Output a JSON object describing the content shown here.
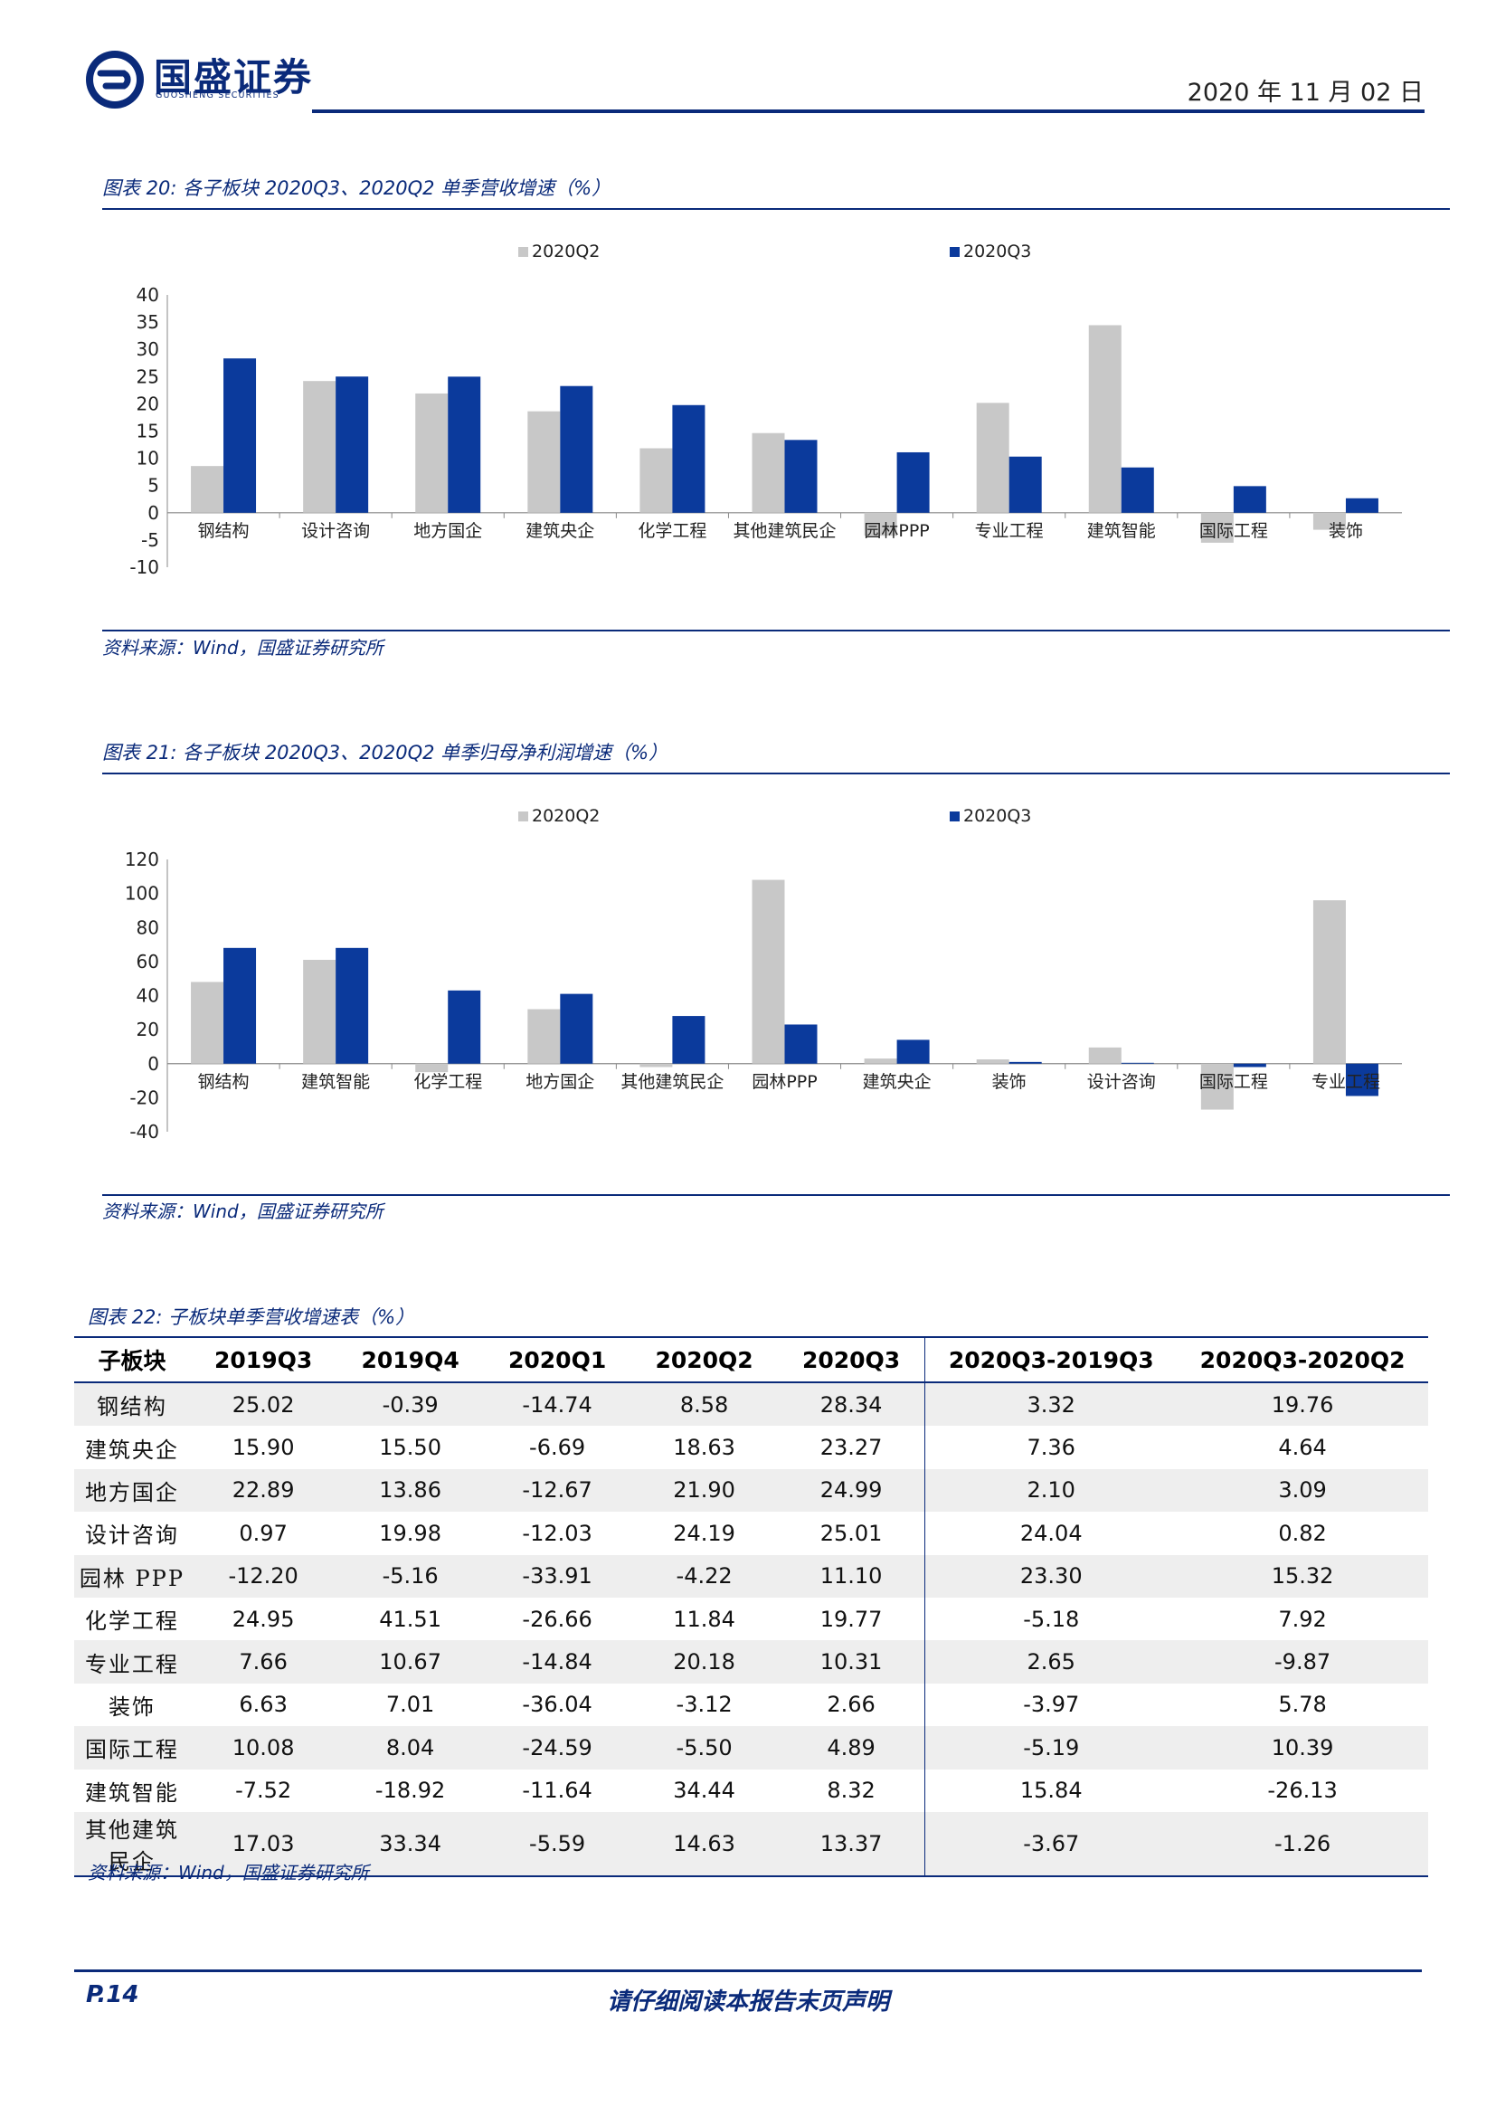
{
  "header": {
    "brand_cn": "国盛证券",
    "brand_en": "GUOSHENG SECURITIES",
    "date": "2020 年 11 月 02 日"
  },
  "figures": {
    "fig20": {
      "title": "图表 20:  各子板块 2020Q3、2020Q2 单季营收增速（%）",
      "source": "资料来源：Wind，国盛证券研究所"
    },
    "fig21": {
      "title": "图表 21:  各子板块 2020Q3、2020Q2 单季归母净利润增速（%）",
      "source": "资料来源：Wind，国盛证券研究所"
    },
    "fig22": {
      "title": "图表 22:  子板块单季营收增速表（%）",
      "source": "资料来源：Wind，国盛证券研究所"
    }
  },
  "colors": {
    "q2": "#c8c8c8",
    "q3": "#0b3a9c",
    "accent": "#0a2a7a"
  },
  "chart_data": [
    {
      "type": "bar",
      "categories": [
        "钢结构",
        "设计咨询",
        "地方国企",
        "建筑央企",
        "化学工程",
        "其他建筑民企",
        "园林PPP",
        "专业工程",
        "建筑智能",
        "国际工程",
        "装饰"
      ],
      "series": [
        {
          "name": "2020Q2",
          "values": [
            8.58,
            24.19,
            21.9,
            18.63,
            11.84,
            14.63,
            -4.22,
            20.18,
            34.44,
            -5.5,
            -3.12
          ]
        },
        {
          "name": "2020Q3",
          "values": [
            28.34,
            25.01,
            24.99,
            23.27,
            19.77,
            13.37,
            11.1,
            10.31,
            8.32,
            4.89,
            2.66
          ]
        }
      ],
      "ylim": [
        -10,
        40
      ],
      "yticks": [
        "40",
        "35",
        "30",
        "25",
        "20",
        "15",
        "10",
        "5",
        "0",
        "-5",
        "-10"
      ],
      "legend": "top",
      "grid": false
    },
    {
      "type": "bar",
      "categories": [
        "钢结构",
        "建筑智能",
        "化学工程",
        "地方国企",
        "其他建筑民企",
        "园林PPP",
        "建筑央企",
        "装饰",
        "设计咨询",
        "国际工程",
        "专业工程"
      ],
      "series": [
        {
          "name": "2020Q2",
          "values": [
            48,
            61,
            -5,
            32,
            -2,
            108,
            3,
            2.5,
            9.5,
            -27,
            96
          ]
        },
        {
          "name": "2020Q3",
          "values": [
            68,
            68,
            43,
            41,
            28,
            23,
            14,
            1,
            0.5,
            -2,
            -19
          ]
        }
      ],
      "ylim": [
        -40,
        120
      ],
      "yticks": [
        "120",
        "100",
        "80",
        "60",
        "40",
        "20",
        "0",
        "-20",
        "-40"
      ],
      "legend": "top",
      "grid": false
    },
    {
      "type": "table",
      "headers": [
        "子板块",
        "2019Q3",
        "2019Q4",
        "2020Q1",
        "2020Q2",
        "2020Q3",
        "2020Q3-2019Q3",
        "2020Q3-2020Q2"
      ],
      "rows": [
        [
          "钢结构",
          "25.02",
          "-0.39",
          "-14.74",
          "8.58",
          "28.34",
          "3.32",
          "19.76"
        ],
        [
          "建筑央企",
          "15.90",
          "15.50",
          "-6.69",
          "18.63",
          "23.27",
          "7.36",
          "4.64"
        ],
        [
          "地方国企",
          "22.89",
          "13.86",
          "-12.67",
          "21.90",
          "24.99",
          "2.10",
          "3.09"
        ],
        [
          "设计咨询",
          "0.97",
          "19.98",
          "-12.03",
          "24.19",
          "25.01",
          "24.04",
          "0.82"
        ],
        [
          "园林 PPP",
          "-12.20",
          "-5.16",
          "-33.91",
          "-4.22",
          "11.10",
          "23.30",
          "15.32"
        ],
        [
          "化学工程",
          "24.95",
          "41.51",
          "-26.66",
          "11.84",
          "19.77",
          "-5.18",
          "7.92"
        ],
        [
          "专业工程",
          "7.66",
          "10.67",
          "-14.84",
          "20.18",
          "10.31",
          "2.65",
          "-9.87"
        ],
        [
          "装饰",
          "6.63",
          "7.01",
          "-36.04",
          "-3.12",
          "2.66",
          "-3.97",
          "5.78"
        ],
        [
          "国际工程",
          "10.08",
          "8.04",
          "-24.59",
          "-5.50",
          "4.89",
          "-5.19",
          "10.39"
        ],
        [
          "建筑智能",
          "-7.52",
          "-18.92",
          "-11.64",
          "34.44",
          "8.32",
          "15.84",
          "-26.13"
        ],
        [
          "其他建筑民企",
          "17.03",
          "33.34",
          "-5.59",
          "14.63",
          "13.37",
          "-3.67",
          "-1.26"
        ]
      ]
    }
  ],
  "footer": {
    "page": "P.14",
    "disclaimer": "请仔细阅读本报告末页声明"
  }
}
